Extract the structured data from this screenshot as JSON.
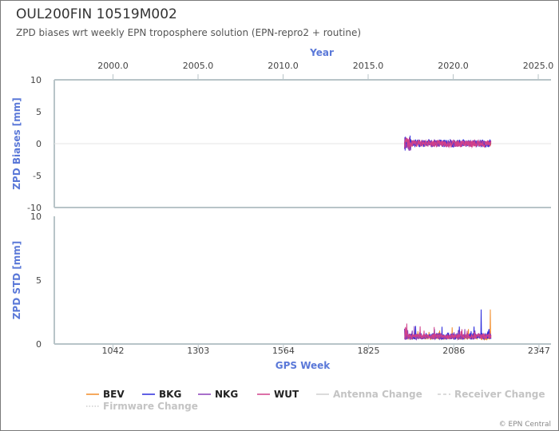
{
  "title": "OUL200FIN 10519M002",
  "subtitle": "ZPD biases wrt weekly EPN troposphere solution (EPN-repro2 + routine)",
  "credit": "© EPN Central",
  "colors": {
    "axis_blue": "#5a78d8",
    "BEV": "#f28c28",
    "BKG": "#2b2bdc",
    "NKG": "#8a3fb8",
    "WUT": "#d0408a",
    "change": "#cfcfcf"
  },
  "chart_data": {
    "type": "line",
    "top_axis": {
      "label": "Year",
      "ticks": [
        "2000.0",
        "2005.0",
        "2010.0",
        "2015.0",
        "2020.0",
        "2025.0"
      ],
      "range": [
        1996.55,
        2025.75
      ]
    },
    "bottom_axis": {
      "label": "GPS Week",
      "ticks": [
        "1042",
        "1303",
        "1564",
        "1825",
        "2086",
        "2347"
      ],
      "range": [
        862,
        2384
      ]
    },
    "panels": [
      {
        "name": "bias",
        "ylabel": "ZPD Biases [mm]",
        "ylim": [
          -10,
          10
        ],
        "yticks": [
          "10",
          "5",
          "0",
          "-5",
          "-10"
        ]
      },
      {
        "name": "std",
        "ylabel": "ZPD STD [mm]",
        "ylim": [
          0,
          10
        ],
        "yticks": [
          "10",
          "5",
          "0"
        ]
      }
    ],
    "series": [
      {
        "name": "BEV",
        "week_range": [
          1937,
          2200
        ],
        "bias_level": 0.0,
        "bias_noise": 0.3,
        "std_level": 0.5,
        "std_noise": 0.15,
        "std_peak": [
          2198,
          2.7
        ]
      },
      {
        "name": "BKG",
        "week_range": [
          1937,
          2200
        ],
        "bias_level": 0.05,
        "bias_noise": 0.6,
        "std_level": 0.6,
        "std_noise": 0.25,
        "std_peak": [
          2170,
          2.7
        ]
      },
      {
        "name": "NKG",
        "week_range": [
          1935,
          2200
        ],
        "bias_level": 0.0,
        "bias_noise": 0.5,
        "std_level": 0.55,
        "std_noise": 0.2,
        "std_peak": [
          1965,
          1.4
        ]
      },
      {
        "name": "WUT",
        "week_range": [
          1935,
          2200
        ],
        "bias_level": 0.0,
        "bias_noise": 0.55,
        "std_level": 0.6,
        "std_noise": 0.2,
        "std_peak": [
          1942,
          1.6
        ]
      }
    ],
    "legend": {
      "placement": "bottom",
      "entries": [
        {
          "name": "BEV",
          "style": "solid"
        },
        {
          "name": "BKG",
          "style": "solid"
        },
        {
          "name": "NKG",
          "style": "solid"
        },
        {
          "name": "WUT",
          "style": "solid"
        },
        {
          "name": "Antenna Change",
          "style": "solid-faded"
        },
        {
          "name": "Receiver Change",
          "style": "dashed-faded"
        },
        {
          "name": "Firmware Change",
          "style": "dotted-faded"
        }
      ]
    }
  }
}
